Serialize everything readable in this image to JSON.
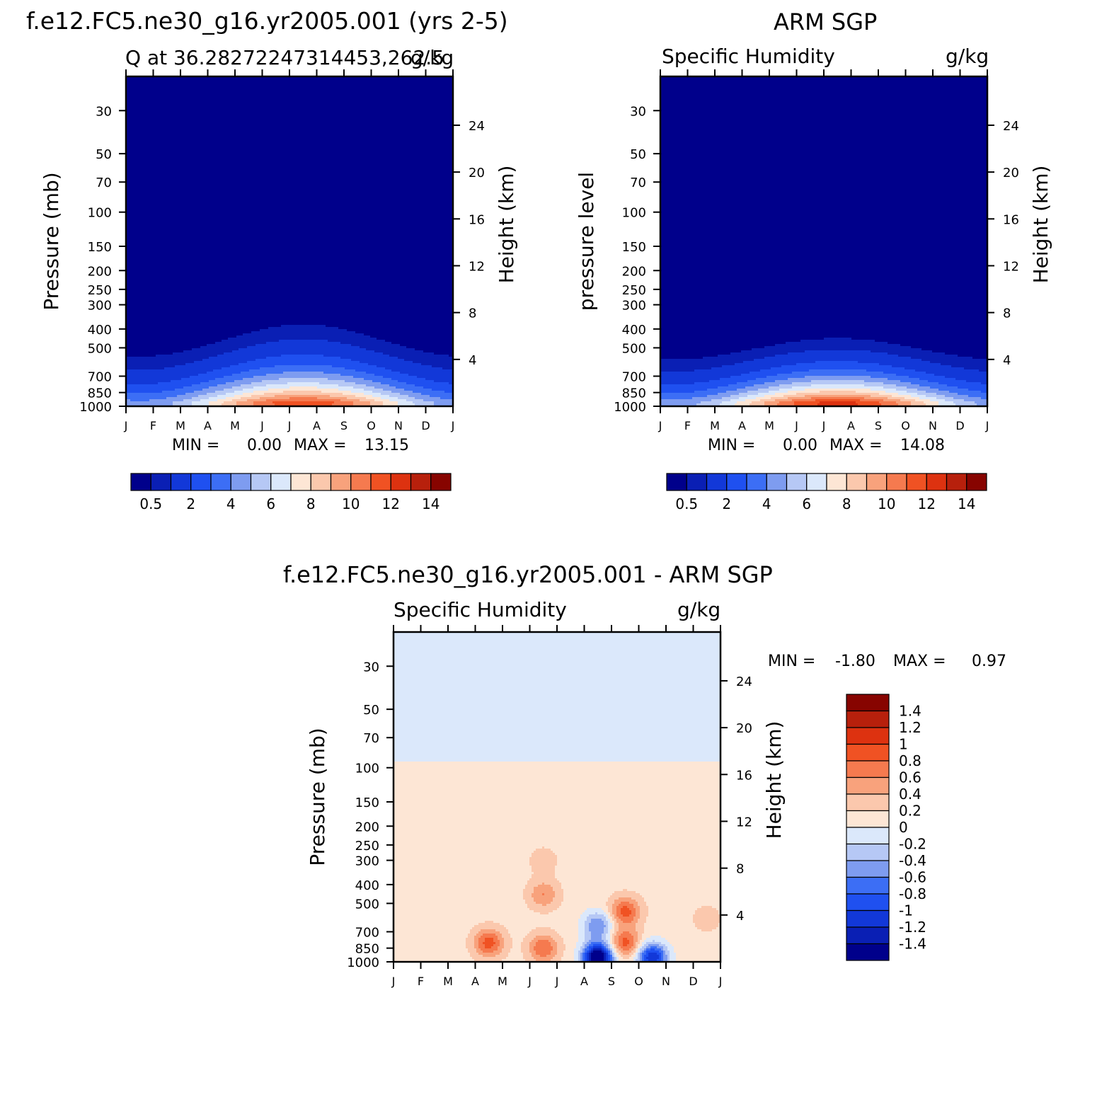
{
  "panels": [
    {
      "id": "model",
      "title": "f.e12.FC5.ne30_g16.yr2005.001 (yrs 2-5)",
      "left_label": "Q at 36.28272247314453,262.5",
      "right_label": "g/kg",
      "ylabel": "Pressure (mb)",
      "ylabel_right": "Height (km)",
      "min_label": "MIN =",
      "min_value": "0.00",
      "max_label": "MAX =",
      "max_value": "13.15"
    },
    {
      "id": "obs",
      "title": "ARM SGP",
      "left_label": "Specific Humidity",
      "right_label": "g/kg",
      "ylabel": "pressure level",
      "ylabel_right": "Height (km)",
      "min_label": "MIN =",
      "min_value": "0.00",
      "max_label": "MAX =",
      "max_value": "14.08"
    },
    {
      "id": "diff",
      "title": "f.e12.FC5.ne30_g16.yr2005.001 - ARM SGP",
      "left_label": "Specific Humidity",
      "right_label": "g/kg",
      "ylabel": "Pressure (mb)",
      "ylabel_right": "Height (km)",
      "min_label": "MIN =",
      "min_value": "-1.80",
      "max_label": "MAX =",
      "max_value": "0.97"
    }
  ],
  "chart_data": [
    {
      "type": "heatmap",
      "title": "f.e12.FC5.ne30_g16.yr2005.001 (yrs 2-5)",
      "xlabel": "",
      "ylabel": "Pressure (mb)",
      "ylabel_right": "Height (km)",
      "x_ticks": [
        "J",
        "F",
        "M",
        "A",
        "M",
        "J",
        "J",
        "A",
        "S",
        "O",
        "N",
        "D",
        "J"
      ],
      "y_ticks": [
        30,
        50,
        70,
        100,
        150,
        200,
        250,
        300,
        400,
        500,
        700,
        850,
        1000
      ],
      "y_right_ticks": [
        4,
        8,
        12,
        16,
        20,
        24
      ],
      "y_scale": "log",
      "ylim": [
        1000,
        20
      ],
      "min": 0.0,
      "max": 13.15,
      "peak_month": "Jul",
      "moist_layer_top_mb": {
        "Jan": 450,
        "Jul": 300,
        "Dec": 450
      },
      "colorbar_levels": [
        0.5,
        1,
        2,
        3,
        4,
        5,
        6,
        7,
        8,
        9,
        10,
        11,
        12,
        13,
        14
      ],
      "colorbar_tick_labels": [
        "0.5",
        "2",
        "4",
        "6",
        "8",
        "10",
        "12",
        "14"
      ],
      "colormap": [
        "#00008b",
        "#0a1fb4",
        "#1238d8",
        "#1f50f0",
        "#3c6ef5",
        "#7e9cf0",
        "#b6c8f5",
        "#dbe8fb",
        "#fde6d5",
        "#fbc8ad",
        "#f8a27c",
        "#f57a4f",
        "#f05223",
        "#dd3210",
        "#b7200c",
        "#870400"
      ]
    },
    {
      "type": "heatmap",
      "title": "ARM SGP",
      "xlabel": "",
      "ylabel": "pressure level",
      "ylabel_right": "Height (km)",
      "x_ticks": [
        "J",
        "F",
        "M",
        "A",
        "M",
        "J",
        "J",
        "A",
        "S",
        "O",
        "N",
        "D",
        "J"
      ],
      "y_ticks": [
        30,
        50,
        70,
        100,
        150,
        200,
        250,
        300,
        400,
        500,
        700,
        850,
        1000
      ],
      "y_right_ticks": [
        4,
        8,
        12,
        16,
        20,
        24
      ],
      "y_scale": "log",
      "ylim": [
        1000,
        20
      ],
      "min": 0.0,
      "max": 14.08,
      "peak_month": "Jul",
      "moist_layer_top_mb": {
        "Jan": 480,
        "Jul": 380,
        "Dec": 480
      },
      "colorbar_levels": [
        0.5,
        1,
        2,
        3,
        4,
        5,
        6,
        7,
        8,
        9,
        10,
        11,
        12,
        13,
        14
      ],
      "colorbar_tick_labels": [
        "0.5",
        "2",
        "4",
        "6",
        "8",
        "10",
        "12",
        "14"
      ],
      "colormap": [
        "#00008b",
        "#0a1fb4",
        "#1238d8",
        "#1f50f0",
        "#3c6ef5",
        "#7e9cf0",
        "#b6c8f5",
        "#dbe8fb",
        "#fde6d5",
        "#fbc8ad",
        "#f8a27c",
        "#f57a4f",
        "#f05223",
        "#dd3210",
        "#b7200c",
        "#870400"
      ]
    },
    {
      "type": "heatmap",
      "title": "f.e12.FC5.ne30_g16.yr2005.001 - ARM SGP",
      "xlabel": "",
      "ylabel": "Pressure (mb)",
      "ylabel_right": "Height (km)",
      "x_ticks": [
        "J",
        "F",
        "M",
        "A",
        "M",
        "J",
        "J",
        "A",
        "S",
        "O",
        "N",
        "D",
        "J"
      ],
      "y_ticks": [
        30,
        50,
        70,
        100,
        150,
        200,
        250,
        300,
        400,
        500,
        700,
        850,
        1000
      ],
      "y_right_ticks": [
        4,
        8,
        12,
        16,
        20,
        24
      ],
      "y_scale": "log",
      "ylim": [
        1000,
        20
      ],
      "min": -1.8,
      "max": 0.97,
      "features": [
        {
          "month": "Apr",
          "pressure_mb": 800,
          "value": 0.9
        },
        {
          "month": "Jun",
          "pressure_mb": 850,
          "value": 0.8
        },
        {
          "month": "Jun",
          "pressure_mb": 450,
          "value": 0.6
        },
        {
          "month": "Sep",
          "pressure_mb": 550,
          "value": 0.9
        },
        {
          "month": "Sep",
          "pressure_mb": 800,
          "value": 0.9
        },
        {
          "month": "Aug",
          "pressure_mb": 950,
          "value": -1.8
        },
        {
          "month": "Oct",
          "pressure_mb": 950,
          "value": -1.2
        },
        {
          "month": "Aug",
          "pressure_mb": 650,
          "value": -0.6
        },
        {
          "month": "Dec",
          "pressure_mb": 600,
          "value": 0.3
        },
        {
          "month": "Jun",
          "pressure_mb": 300,
          "value": 0.3
        }
      ],
      "colorbar_levels": [
        -1.4,
        -1.2,
        -1,
        -0.8,
        -0.6,
        -0.4,
        -0.2,
        0,
        0.2,
        0.4,
        0.6,
        0.8,
        1,
        1.2,
        1.4
      ],
      "colorbar_tick_labels": [
        "1.4",
        "1.2",
        "1",
        "0.8",
        "0.6",
        "0.4",
        "0.2",
        "0",
        "-0.2",
        "-0.4",
        "-0.6",
        "-0.8",
        "-1",
        "-1.2",
        "-1.4"
      ],
      "colormap": [
        "#00008b",
        "#0a1fb4",
        "#1238d8",
        "#1f50f0",
        "#3c6ef5",
        "#7e9cf0",
        "#b6c8f5",
        "#dbe8fb",
        "#fde6d5",
        "#fbc8ad",
        "#f8a27c",
        "#f57a4f",
        "#f05223",
        "#dd3210",
        "#b7200c",
        "#870400"
      ]
    }
  ]
}
